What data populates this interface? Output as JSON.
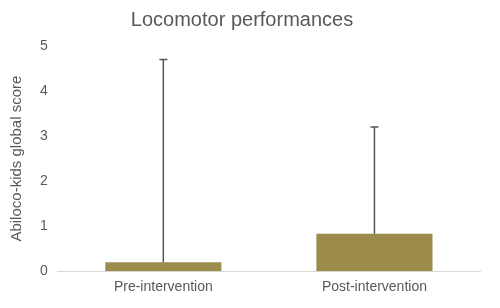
{
  "chart_data": {
    "type": "bar",
    "title": "Locomotor performances",
    "y_label": "Abiloco-kids global score",
    "categories": [
      "Pre-intervention",
      "Post-intervention"
    ],
    "values": [
      0.2,
      0.83
    ],
    "errors": [
      4.5,
      2.37
    ],
    "color": "#9b8c4c",
    "ylim": [
      0,
      5
    ],
    "yticks": [
      0,
      1,
      2,
      3,
      4,
      5
    ],
    "grid": false
  }
}
